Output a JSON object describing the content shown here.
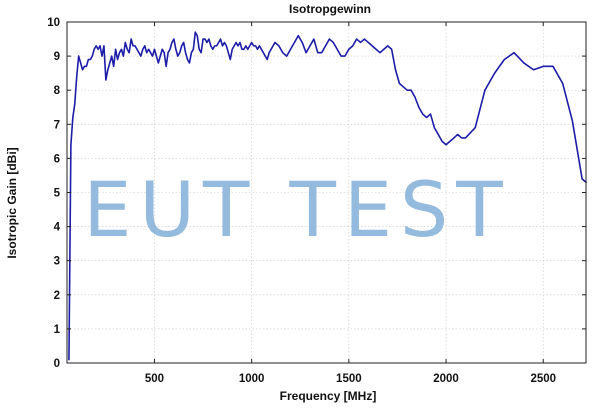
{
  "chart_data": {
    "type": "line",
    "title": "Isotropgewinn",
    "xlabel": "Frequency [MHz]",
    "ylabel": "Isotropic Gain [dBi]",
    "xlim": [
      50,
      2720
    ],
    "ylim": [
      0,
      10
    ],
    "xticks": [
      500,
      1000,
      1500,
      2000,
      2500
    ],
    "xtick_labels": [
      "500",
      "1000",
      "1500",
      "2000",
      "2500"
    ],
    "yticks": [
      0,
      1,
      2,
      3,
      4,
      5,
      6,
      7,
      8,
      9,
      10
    ],
    "ytick_labels": [
      "0",
      "1",
      "2",
      "3",
      "4",
      "5",
      "6",
      "7",
      "8",
      "9",
      "10"
    ],
    "grid": true,
    "watermark": "EUT TEST",
    "colors": {
      "series": "#1c1ca8",
      "watermark": "#8fb7dc",
      "grid": "#c9c9c9"
    },
    "series": [
      {
        "x": [
          60,
          70,
          80,
          90,
          100,
          110,
          120,
          130,
          140,
          150,
          160,
          170,
          180,
          190,
          200,
          210,
          220,
          230,
          240,
          250,
          260,
          270,
          280,
          290,
          300,
          310,
          320,
          330,
          340,
          350,
          360,
          370,
          380,
          390,
          400,
          410,
          420,
          430,
          440,
          450,
          460,
          470,
          480,
          490,
          500,
          510,
          520,
          530,
          540,
          550,
          560,
          570,
          580,
          590,
          600,
          610,
          620,
          630,
          640,
          650,
          660,
          670,
          680,
          690,
          700,
          710,
          720,
          730,
          740,
          750,
          760,
          770,
          780,
          790,
          800,
          810,
          820,
          830,
          840,
          850,
          860,
          870,
          880,
          890,
          900,
          910,
          920,
          930,
          940,
          950,
          960,
          970,
          980,
          990,
          1000,
          1010,
          1020,
          1030,
          1040,
          1050,
          1060,
          1070,
          1080,
          1090,
          1100,
          1120,
          1140,
          1160,
          1180,
          1200,
          1220,
          1240,
          1260,
          1280,
          1300,
          1320,
          1340,
          1360,
          1380,
          1400,
          1420,
          1440,
          1460,
          1480,
          1500,
          1520,
          1540,
          1560,
          1580,
          1600,
          1620,
          1640,
          1660,
          1680,
          1700,
          1720,
          1740,
          1760,
          1780,
          1800,
          1820,
          1840,
          1860,
          1880,
          1900,
          1920,
          1940,
          1960,
          1980,
          2000,
          2020,
          2040,
          2060,
          2080,
          2100,
          2150,
          2200,
          2250,
          2300,
          2350,
          2400,
          2450,
          2500,
          2550,
          2600,
          2650,
          2700,
          2720
        ],
        "y": [
          0.1,
          6.4,
          7.2,
          7.6,
          8.4,
          9.0,
          8.8,
          8.6,
          8.7,
          8.7,
          8.9,
          8.9,
          9.0,
          9.2,
          9.3,
          9.2,
          9.3,
          9.0,
          9.3,
          8.3,
          8.6,
          8.8,
          9.0,
          8.7,
          9.2,
          8.9,
          9.1,
          9.2,
          9.0,
          9.4,
          9.2,
          9.1,
          9.5,
          9.3,
          9.3,
          9.2,
          9.1,
          9.0,
          9.2,
          9.3,
          9.1,
          9.2,
          9.1,
          9.0,
          9.2,
          9.0,
          8.8,
          9.0,
          9.2,
          9.1,
          8.7,
          9.1,
          9.2,
          9.4,
          9.5,
          9.2,
          9.0,
          9.1,
          9.3,
          9.4,
          9.1,
          8.9,
          8.8,
          9.1,
          9.2,
          9.7,
          9.6,
          9.2,
          9.1,
          9.5,
          9.5,
          9.4,
          9.5,
          9.3,
          9.2,
          9.3,
          9.3,
          9.4,
          9.5,
          9.3,
          9.4,
          9.3,
          9.1,
          8.9,
          9.2,
          9.3,
          9.4,
          9.3,
          9.4,
          9.2,
          9.2,
          9.3,
          9.2,
          9.3,
          9.4,
          9.3,
          9.3,
          9.2,
          9.3,
          9.2,
          9.1,
          9.0,
          8.9,
          9.1,
          9.2,
          9.4,
          9.3,
          9.1,
          9.0,
          9.2,
          9.4,
          9.6,
          9.4,
          9.1,
          9.3,
          9.5,
          9.1,
          9.1,
          9.3,
          9.5,
          9.4,
          9.2,
          9.0,
          9.0,
          9.2,
          9.3,
          9.5,
          9.4,
          9.5,
          9.4,
          9.3,
          9.2,
          9.1,
          9.2,
          9.3,
          9.2,
          8.6,
          8.2,
          8.1,
          8.0,
          8.0,
          7.8,
          7.5,
          7.3,
          7.2,
          7.3,
          6.9,
          6.7,
          6.5,
          6.4,
          6.5,
          6.6,
          6.7,
          6.6,
          6.6,
          6.9,
          8.0,
          8.5,
          8.9,
          9.1,
          8.8,
          8.6,
          8.7,
          8.7,
          8.2,
          7.1,
          5.4,
          5.3
        ]
      }
    ]
  }
}
